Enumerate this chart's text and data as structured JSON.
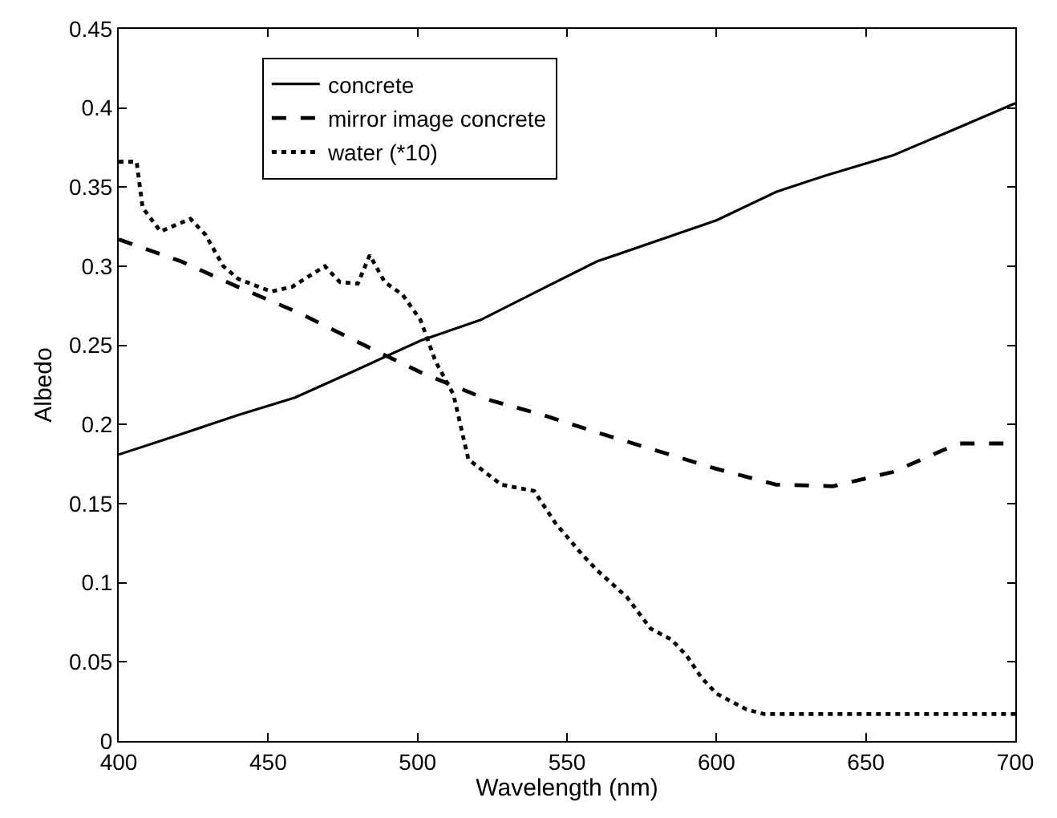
{
  "chart_data": {
    "type": "line",
    "xlabel": "Wavelength (nm)",
    "ylabel": "Albedo",
    "xlim": [
      400,
      700
    ],
    "ylim": [
      0,
      0.45
    ],
    "xticks": [
      400,
      450,
      500,
      550,
      600,
      650,
      700
    ],
    "yticks": [
      0,
      0.05,
      0.1,
      0.15,
      0.2,
      0.25,
      0.3,
      0.35,
      0.4,
      0.45
    ],
    "grid": false,
    "legend": "top left",
    "marker": "none",
    "series": [
      {
        "name": "concrete",
        "color": "#000000",
        "line_style": "solid",
        "x": [
          400,
          421,
          440,
          459,
          479,
          501,
          521,
          542,
          560,
          600,
          620,
          636,
          659,
          679,
          700
        ],
        "values": [
          0.181,
          0.194,
          0.206,
          0.217,
          0.234,
          0.253,
          0.266,
          0.286,
          0.303,
          0.329,
          0.347,
          0.357,
          0.37,
          0.386,
          0.403
        ]
      },
      {
        "name": "mirror image concrete",
        "color": "#000000",
        "line_style": "dashed",
        "x": [
          400,
          421,
          441,
          461,
          479,
          501,
          523,
          542,
          560,
          600,
          620,
          639,
          659,
          681,
          700
        ],
        "values": [
          0.317,
          0.303,
          0.286,
          0.27,
          0.253,
          0.233,
          0.216,
          0.206,
          0.195,
          0.172,
          0.162,
          0.161,
          0.17,
          0.188,
          0.188
        ]
      },
      {
        "name": "water (*10)",
        "color": "#000000",
        "line_style": "dotted",
        "x": [
          400,
          406,
          408,
          414,
          424,
          429,
          435,
          440,
          451,
          458,
          469,
          474,
          480,
          484,
          489,
          495,
          501,
          506,
          512,
          517,
          528,
          539,
          546,
          555,
          560,
          570,
          578,
          585,
          590,
          595,
          600,
          610,
          616,
          700
        ],
        "values": [
          0.366,
          0.366,
          0.337,
          0.322,
          0.33,
          0.32,
          0.3,
          0.292,
          0.284,
          0.287,
          0.3,
          0.29,
          0.289,
          0.307,
          0.29,
          0.282,
          0.266,
          0.24,
          0.219,
          0.178,
          0.162,
          0.158,
          0.138,
          0.118,
          0.108,
          0.091,
          0.071,
          0.064,
          0.054,
          0.04,
          0.03,
          0.02,
          0.017,
          0.017
        ]
      }
    ]
  }
}
